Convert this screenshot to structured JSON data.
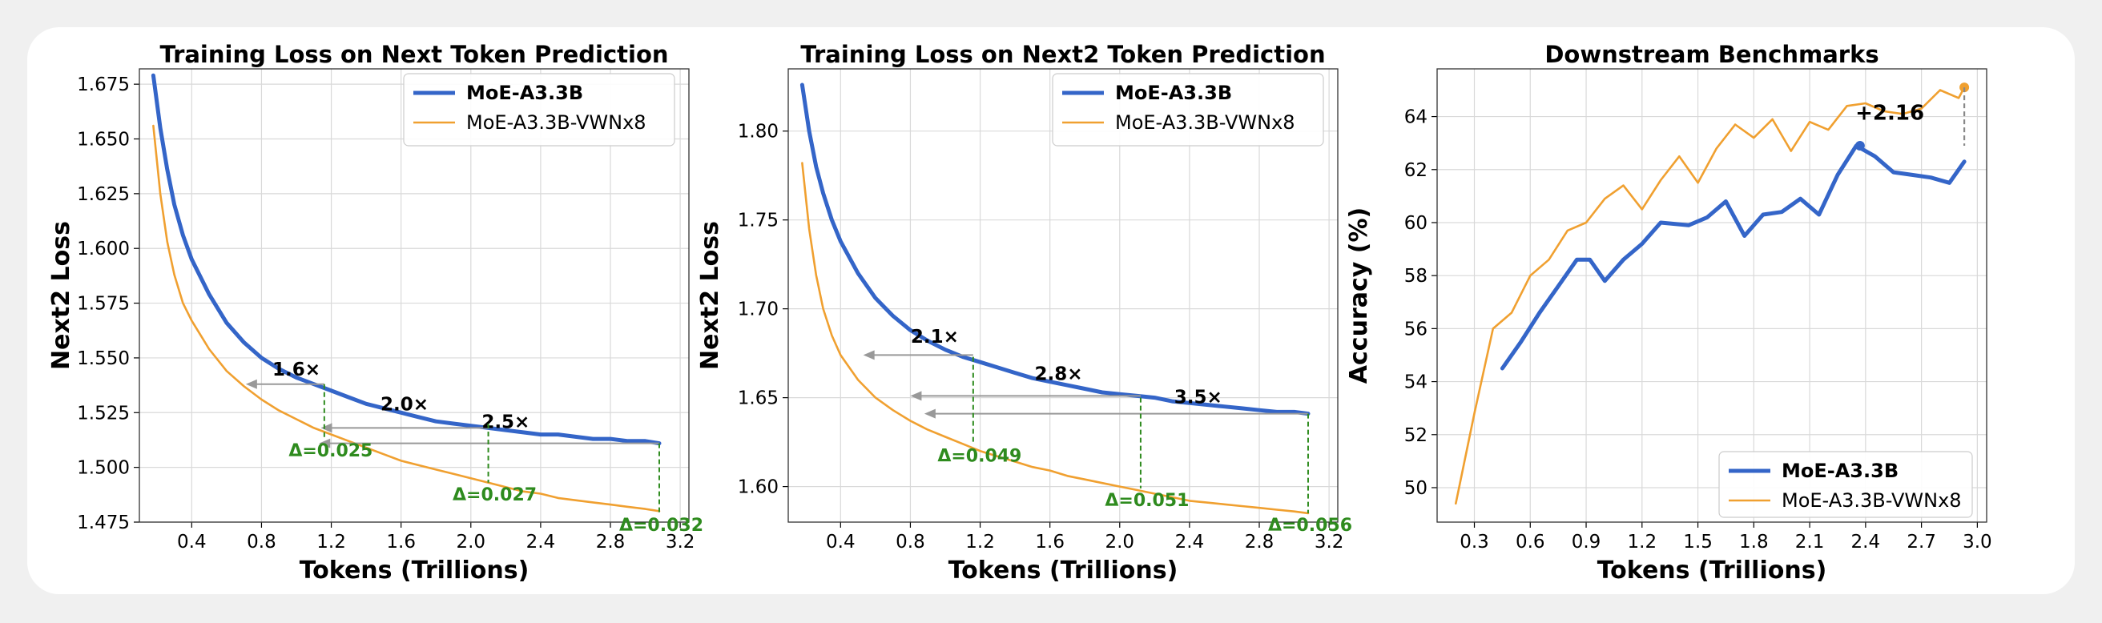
{
  "colors": {
    "base": "#3465c8",
    "vwn": "#f0a030",
    "delta": "#2e8b1e",
    "grid": "#d9d9d9",
    "arrow": "#999999"
  },
  "chart_data": [
    {
      "type": "line",
      "title": "Training Loss on Next Token Prediction",
      "xlabel": "Tokens (Trillions)",
      "ylabel": "Next2 Loss",
      "xlim": [
        0.1,
        3.25
      ],
      "ylim": [
        1.475,
        1.682
      ],
      "xticks": [
        "0.4",
        "0.8",
        "1.2",
        "1.6",
        "2.0",
        "2.4",
        "2.8",
        "3.2"
      ],
      "yticks": [
        "1.475",
        "1.500",
        "1.525",
        "1.550",
        "1.575",
        "1.600",
        "1.625",
        "1.650",
        "1.675"
      ],
      "grid": true,
      "legend_position": "top-right",
      "series": [
        {
          "name": "MoE-A3.3B",
          "x": [
            0.18,
            0.22,
            0.26,
            0.3,
            0.35,
            0.4,
            0.5,
            0.6,
            0.7,
            0.8,
            0.9,
            1.0,
            1.1,
            1.2,
            1.3,
            1.4,
            1.5,
            1.6,
            1.7,
            1.8,
            1.9,
            2.0,
            2.1,
            2.2,
            2.3,
            2.4,
            2.5,
            2.6,
            2.7,
            2.8,
            2.9,
            3.0,
            3.08
          ],
          "y": [
            1.679,
            1.655,
            1.636,
            1.62,
            1.606,
            1.595,
            1.579,
            1.566,
            1.557,
            1.55,
            1.545,
            1.541,
            1.538,
            1.535,
            1.532,
            1.529,
            1.527,
            1.525,
            1.523,
            1.521,
            1.52,
            1.519,
            1.518,
            1.517,
            1.516,
            1.515,
            1.515,
            1.514,
            1.513,
            1.513,
            1.512,
            1.512,
            1.511
          ]
        },
        {
          "name": "MoE-A3.3B-VWNx8",
          "x": [
            0.18,
            0.22,
            0.26,
            0.3,
            0.35,
            0.4,
            0.5,
            0.6,
            0.7,
            0.8,
            0.9,
            1.0,
            1.1,
            1.2,
            1.3,
            1.4,
            1.5,
            1.6,
            1.7,
            1.8,
            1.9,
            2.0,
            2.1,
            2.2,
            2.3,
            2.4,
            2.5,
            2.6,
            2.7,
            2.8,
            2.9,
            3.0,
            3.08
          ],
          "y": [
            1.656,
            1.625,
            1.603,
            1.588,
            1.575,
            1.567,
            1.554,
            1.544,
            1.537,
            1.531,
            1.526,
            1.522,
            1.518,
            1.515,
            1.512,
            1.509,
            1.506,
            1.503,
            1.501,
            1.499,
            1.497,
            1.495,
            1.493,
            1.491,
            1.489,
            1.488,
            1.486,
            1.485,
            1.484,
            1.483,
            1.482,
            1.481,
            1.48
          ]
        }
      ],
      "annotations": [
        {
          "text": "1.6×",
          "x": 1.0,
          "y": 1.542
        },
        {
          "text": "2.0×",
          "x": 1.62,
          "y": 1.526
        },
        {
          "text": "2.5×",
          "x": 2.2,
          "y": 1.518
        }
      ],
      "arrows": [
        {
          "x1": 1.16,
          "x2": 0.71,
          "y": 1.538
        },
        {
          "x1": 2.1,
          "x2": 1.14,
          "y": 1.518
        },
        {
          "x1": 3.08,
          "x2": 1.13,
          "y": 1.511
        }
      ],
      "deltas": [
        {
          "text": "Δ=0.025",
          "x": 1.16,
          "y_top": 1.538,
          "y_bottom": 1.513
        },
        {
          "text": "Δ=0.027",
          "x": 2.1,
          "y_top": 1.52,
          "y_bottom": 1.493
        },
        {
          "text": "Δ=0.032",
          "x": 3.08,
          "y_top": 1.511,
          "y_bottom": 1.479
        }
      ]
    },
    {
      "type": "line",
      "title": "Training Loss on Next2 Token Prediction",
      "xlabel": "Tokens (Trillions)",
      "ylabel": "Next2 Loss",
      "xlim": [
        0.1,
        3.25
      ],
      "ylim": [
        1.58,
        1.835
      ],
      "xticks": [
        "0.4",
        "0.8",
        "1.2",
        "1.6",
        "2.0",
        "2.4",
        "2.8",
        "3.2"
      ],
      "yticks": [
        "1.60",
        "1.65",
        "1.70",
        "1.75",
        "1.80"
      ],
      "grid": true,
      "legend_position": "top-right",
      "series": [
        {
          "name": "MoE-A3.3B",
          "x": [
            0.18,
            0.22,
            0.26,
            0.3,
            0.35,
            0.4,
            0.5,
            0.6,
            0.7,
            0.8,
            0.9,
            1.0,
            1.1,
            1.2,
            1.3,
            1.4,
            1.5,
            1.6,
            1.7,
            1.8,
            1.9,
            2.0,
            2.1,
            2.2,
            2.3,
            2.4,
            2.5,
            2.6,
            2.7,
            2.8,
            2.9,
            3.0,
            3.08
          ],
          "y": [
            1.826,
            1.8,
            1.78,
            1.765,
            1.75,
            1.738,
            1.72,
            1.706,
            1.696,
            1.688,
            1.682,
            1.677,
            1.673,
            1.67,
            1.667,
            1.664,
            1.661,
            1.659,
            1.657,
            1.655,
            1.653,
            1.652,
            1.651,
            1.65,
            1.648,
            1.647,
            1.646,
            1.645,
            1.644,
            1.643,
            1.642,
            1.642,
            1.641
          ]
        },
        {
          "name": "MoE-A3.3B-VWNx8",
          "x": [
            0.18,
            0.22,
            0.26,
            0.3,
            0.35,
            0.4,
            0.5,
            0.6,
            0.7,
            0.8,
            0.9,
            1.0,
            1.1,
            1.2,
            1.3,
            1.4,
            1.5,
            1.6,
            1.7,
            1.8,
            1.9,
            2.0,
            2.1,
            2.2,
            2.3,
            2.4,
            2.5,
            2.6,
            2.7,
            2.8,
            2.9,
            3.0,
            3.08
          ],
          "y": [
            1.782,
            1.745,
            1.719,
            1.7,
            1.685,
            1.674,
            1.66,
            1.65,
            1.643,
            1.637,
            1.632,
            1.628,
            1.624,
            1.62,
            1.617,
            1.614,
            1.611,
            1.609,
            1.606,
            1.604,
            1.602,
            1.6,
            1.598,
            1.596,
            1.594,
            1.592,
            1.591,
            1.59,
            1.589,
            1.588,
            1.587,
            1.586,
            1.585
          ]
        }
      ],
      "annotations": [
        {
          "text": "2.1×",
          "x": 0.94,
          "y": 1.681
        },
        {
          "text": "2.8×",
          "x": 1.65,
          "y": 1.66
        },
        {
          "text": "3.5×",
          "x": 2.45,
          "y": 1.647
        }
      ],
      "arrows": [
        {
          "x1": 1.16,
          "x2": 0.53,
          "y": 1.674
        },
        {
          "x1": 2.12,
          "x2": 0.8,
          "y": 1.651
        },
        {
          "x1": 3.08,
          "x2": 0.88,
          "y": 1.641
        }
      ],
      "deltas": [
        {
          "text": "Δ=0.049",
          "x": 1.16,
          "y_top": 1.673,
          "y_bottom": 1.624
        },
        {
          "text": "Δ=0.051",
          "x": 2.12,
          "y_top": 1.65,
          "y_bottom": 1.599
        },
        {
          "text": "Δ=0.056",
          "x": 3.08,
          "y_top": 1.641,
          "y_bottom": 1.585
        }
      ]
    },
    {
      "type": "line",
      "title": "Downstream Benchmarks",
      "xlabel": "Tokens (Trillions)",
      "ylabel": "Accuracy (%)",
      "xlim": [
        0.1,
        3.05
      ],
      "ylim": [
        48.7,
        65.8
      ],
      "xticks": [
        "0.3",
        "0.6",
        "0.9",
        "1.2",
        "1.5",
        "1.8",
        "2.1",
        "2.4",
        "2.7",
        "3.0"
      ],
      "yticks": [
        "50",
        "52",
        "54",
        "56",
        "58",
        "60",
        "62",
        "64"
      ],
      "grid": true,
      "legend_position": "bottom-right",
      "series": [
        {
          "name": "MoE-A3.3B",
          "x": [
            0.45,
            0.55,
            0.65,
            0.75,
            0.85,
            0.92,
            1.0,
            1.1,
            1.2,
            1.3,
            1.45,
            1.55,
            1.65,
            1.75,
            1.85,
            1.95,
            2.05,
            2.15,
            2.25,
            2.35,
            2.45,
            2.55,
            2.65,
            2.75,
            2.85,
            2.93
          ],
          "y": [
            54.5,
            55.5,
            56.6,
            57.6,
            58.6,
            58.6,
            57.8,
            58.6,
            59.2,
            60.0,
            59.9,
            60.2,
            60.8,
            59.5,
            60.3,
            60.4,
            60.9,
            60.3,
            61.8,
            62.9,
            62.5,
            61.9,
            61.8,
            61.7,
            61.5,
            62.3
          ]
        },
        {
          "name": "MoE-A3.3B-VWNx8",
          "x": [
            0.2,
            0.3,
            0.4,
            0.5,
            0.6,
            0.7,
            0.8,
            0.9,
            1.0,
            1.1,
            1.2,
            1.3,
            1.4,
            1.5,
            1.6,
            1.7,
            1.8,
            1.9,
            2.0,
            2.1,
            2.2,
            2.3,
            2.4,
            2.5,
            2.6,
            2.7,
            2.8,
            2.9,
            2.93
          ],
          "y": [
            49.4,
            52.8,
            56.0,
            56.6,
            58.0,
            58.6,
            59.7,
            60.0,
            60.9,
            61.4,
            60.5,
            61.6,
            62.5,
            61.5,
            62.8,
            63.7,
            63.2,
            63.9,
            62.7,
            63.8,
            63.5,
            64.4,
            64.5,
            64.2,
            64.1,
            64.3,
            65.0,
            64.7,
            65.1
          ]
        }
      ],
      "highlight_points": [
        {
          "series": 0,
          "x": 2.37,
          "y": 62.9
        },
        {
          "series": 1,
          "x": 2.93,
          "y": 65.1
        }
      ],
      "gain": {
        "text": "+2.16",
        "x": 2.93,
        "y_top": 65.1,
        "y_bottom": 62.9
      }
    }
  ]
}
